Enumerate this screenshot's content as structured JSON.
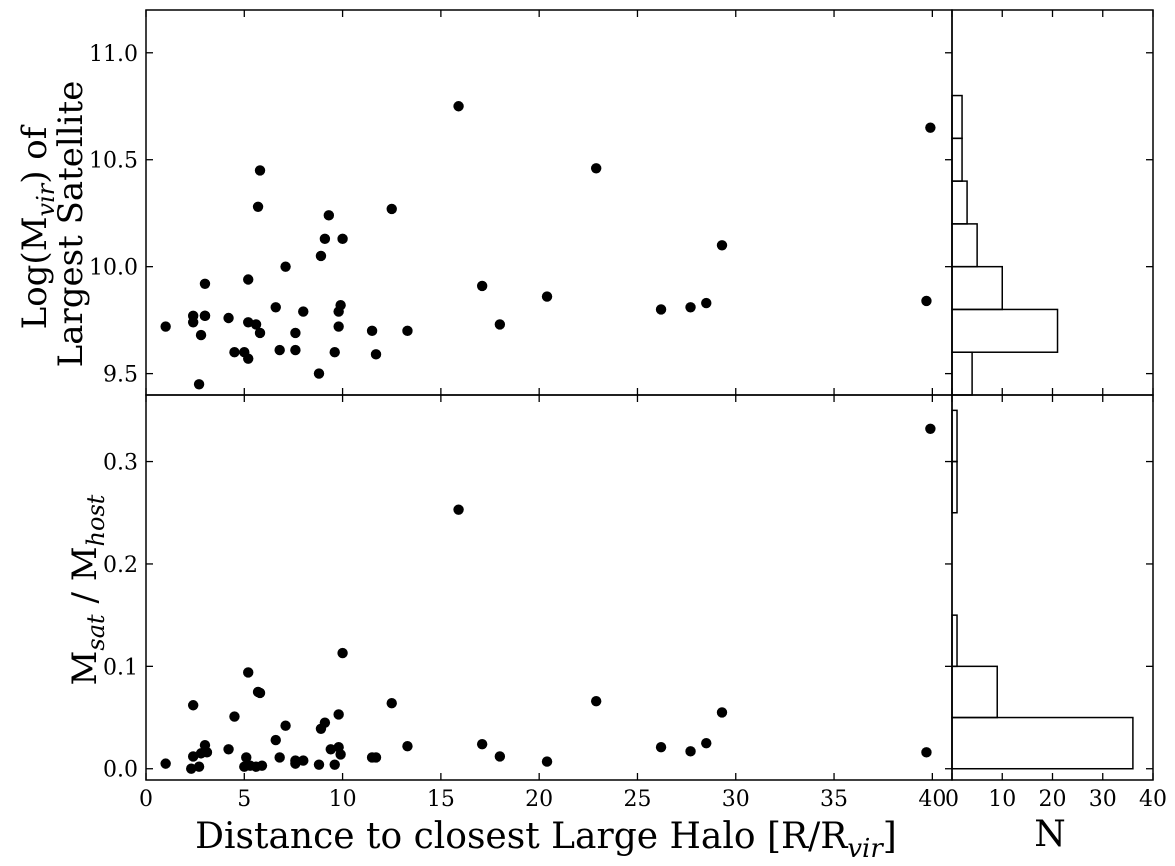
{
  "chart_data": [
    {
      "type": "scatter",
      "ylabel_line1": "Log(M",
      "ylabel_sub": "vir",
      "ylabel_line1_tail": ") of",
      "ylabel_line2": "Largest Satellite",
      "xlim": [
        0,
        41
      ],
      "ylim": [
        9.4,
        11.2
      ],
      "yticks": [
        "9.5",
        "10.0",
        "10.5",
        "11.0"
      ],
      "points": [
        [
          1.0,
          9.72
        ],
        [
          2.4,
          9.77
        ],
        [
          2.4,
          9.74
        ],
        [
          2.7,
          9.45
        ],
        [
          2.8,
          9.68
        ],
        [
          3.0,
          9.77
        ],
        [
          3.0,
          9.92
        ],
        [
          3.0,
          9.77
        ],
        [
          4.2,
          9.76
        ],
        [
          4.5,
          9.6
        ],
        [
          5.0,
          9.6
        ],
        [
          5.2,
          9.74
        ],
        [
          5.2,
          9.94
        ],
        [
          5.2,
          9.57
        ],
        [
          5.6,
          9.73
        ],
        [
          5.7,
          10.28
        ],
        [
          5.8,
          10.45
        ],
        [
          5.8,
          9.69
        ],
        [
          6.6,
          9.81
        ],
        [
          6.8,
          9.61
        ],
        [
          7.1,
          10.0
        ],
        [
          7.6,
          9.69
        ],
        [
          7.6,
          9.61
        ],
        [
          8.0,
          9.79
        ],
        [
          8.8,
          9.5
        ],
        [
          8.9,
          10.05
        ],
        [
          9.1,
          10.13
        ],
        [
          9.3,
          10.24
        ],
        [
          9.6,
          9.6
        ],
        [
          9.8,
          9.79
        ],
        [
          9.8,
          9.72
        ],
        [
          9.9,
          9.82
        ],
        [
          10.0,
          10.13
        ],
        [
          11.5,
          9.7
        ],
        [
          11.7,
          9.59
        ],
        [
          12.5,
          10.27
        ],
        [
          13.3,
          9.7
        ],
        [
          15.9,
          10.75
        ],
        [
          17.1,
          9.91
        ],
        [
          18.0,
          9.73
        ],
        [
          20.4,
          9.86
        ],
        [
          22.9,
          10.46
        ],
        [
          26.2,
          9.8
        ],
        [
          27.7,
          9.81
        ],
        [
          28.5,
          9.83
        ],
        [
          29.3,
          10.1
        ],
        [
          39.7,
          9.84
        ],
        [
          39.9,
          10.65
        ]
      ],
      "hist": [
        {
          "lo": 9.4,
          "hi": 9.6,
          "count": 4
        },
        {
          "lo": 9.6,
          "hi": 9.8,
          "count": 21
        },
        {
          "lo": 9.8,
          "hi": 10.0,
          "count": 10
        },
        {
          "lo": 10.0,
          "hi": 10.2,
          "count": 5
        },
        {
          "lo": 10.2,
          "hi": 10.4,
          "count": 3
        },
        {
          "lo": 10.4,
          "hi": 10.6,
          "count": 2
        },
        {
          "lo": 10.6,
          "hi": 10.8,
          "count": 2
        }
      ]
    },
    {
      "type": "scatter",
      "ylabel_a": "M",
      "ylabel_a_sub": "sat",
      "ylabel_mid": " / M",
      "ylabel_b_sub": "host",
      "xlabel_main": "Distance to closest Large Halo [R/R",
      "xlabel_sub": "vir",
      "xlabel_tail": "]",
      "hist_xlabel": "N",
      "xlim": [
        0,
        41
      ],
      "ylim": [
        -0.011,
        0.365
      ],
      "xticks": [
        "0",
        "5",
        "10",
        "15",
        "20",
        "25",
        "30",
        "35",
        "40"
      ],
      "yticks": [
        "0.0",
        "0.1",
        "0.2",
        "0.3"
      ],
      "hist_xticks": [
        "0",
        "10",
        "20",
        "30",
        "40"
      ],
      "points": [
        [
          1.0,
          0.005
        ],
        [
          2.3,
          0.0
        ],
        [
          2.4,
          0.012
        ],
        [
          2.4,
          0.062
        ],
        [
          2.7,
          0.002
        ],
        [
          2.8,
          0.015
        ],
        [
          3.0,
          0.023
        ],
        [
          3.0,
          0.017
        ],
        [
          3.1,
          0.016
        ],
        [
          4.2,
          0.019
        ],
        [
          4.5,
          0.051
        ],
        [
          5.0,
          0.002
        ],
        [
          5.1,
          0.011
        ],
        [
          5.2,
          0.094
        ],
        [
          5.3,
          0.003
        ],
        [
          5.6,
          0.002
        ],
        [
          5.7,
          0.075
        ],
        [
          5.8,
          0.074
        ],
        [
          5.9,
          0.003
        ],
        [
          6.6,
          0.028
        ],
        [
          6.8,
          0.011
        ],
        [
          7.1,
          0.042
        ],
        [
          7.6,
          0.005
        ],
        [
          7.6,
          0.008
        ],
        [
          8.0,
          0.008
        ],
        [
          8.8,
          0.004
        ],
        [
          8.9,
          0.039
        ],
        [
          9.1,
          0.045
        ],
        [
          9.4,
          0.019
        ],
        [
          9.6,
          0.004
        ],
        [
          9.8,
          0.053
        ],
        [
          9.8,
          0.021
        ],
        [
          9.9,
          0.014
        ],
        [
          10.0,
          0.113
        ],
        [
          11.5,
          0.011
        ],
        [
          11.7,
          0.011
        ],
        [
          12.5,
          0.064
        ],
        [
          13.3,
          0.022
        ],
        [
          15.9,
          0.253
        ],
        [
          17.1,
          0.024
        ],
        [
          18.0,
          0.012
        ],
        [
          20.4,
          0.007
        ],
        [
          22.9,
          0.066
        ],
        [
          26.2,
          0.021
        ],
        [
          27.7,
          0.017
        ],
        [
          28.5,
          0.025
        ],
        [
          29.3,
          0.055
        ],
        [
          39.7,
          0.016
        ],
        [
          39.9,
          0.332
        ]
      ],
      "hist": [
        {
          "lo": 0.0,
          "hi": 0.05,
          "count": 36
        },
        {
          "lo": 0.05,
          "hi": 0.1,
          "count": 9
        },
        {
          "lo": 0.1,
          "hi": 0.15,
          "count": 1
        },
        {
          "lo": 0.25,
          "hi": 0.3,
          "count": 1
        },
        {
          "lo": 0.3,
          "hi": 0.35,
          "count": 1
        }
      ],
      "hist_xlim": [
        0,
        40
      ]
    }
  ]
}
